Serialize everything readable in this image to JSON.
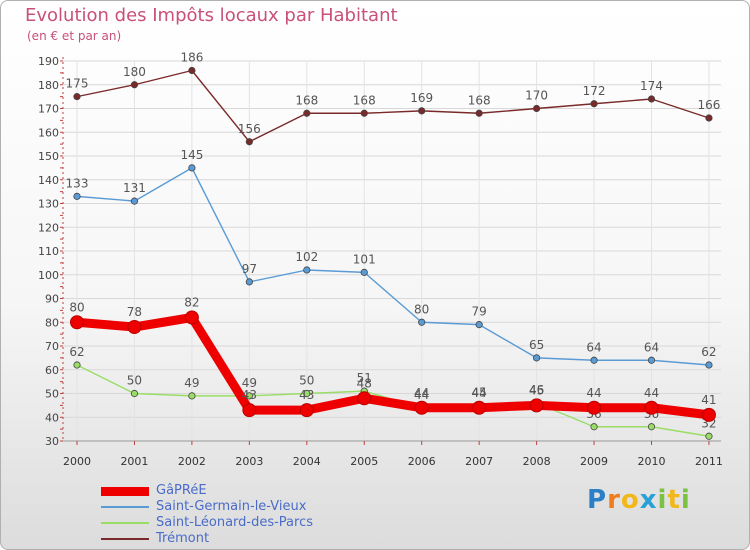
{
  "chart_data": {
    "type": "line",
    "title": "Evolution des Impôts locaux par Habitant",
    "subtitle": "(en € et par an)",
    "xlabel": "",
    "ylabel": "",
    "x": [
      "2000",
      "2001",
      "2002",
      "2003",
      "2004",
      "2005",
      "2006",
      "2007",
      "2008",
      "2009",
      "2010",
      "2011"
    ],
    "ylim": [
      30,
      190
    ],
    "yticks": [
      30,
      40,
      50,
      60,
      70,
      80,
      90,
      100,
      110,
      120,
      130,
      140,
      150,
      160,
      170,
      180,
      190
    ],
    "grid": true,
    "legend_position": "bottom-left",
    "series": [
      {
        "name": "Trémont",
        "color": "#7a2a2a",
        "values": [
          175,
          180,
          186,
          156,
          168,
          168,
          169,
          168,
          170,
          172,
          174,
          166
        ],
        "labels": [
          "175",
          "180",
          "186",
          "156",
          "168",
          "168",
          "169",
          "168",
          "170",
          "172",
          "174",
          "166"
        ]
      },
      {
        "name": "Saint-Germain-le-Vieux",
        "color": "#5b9bd5",
        "values": [
          133,
          131,
          145,
          97,
          102,
          101,
          80,
          79,
          65,
          64,
          64,
          62
        ],
        "labels": [
          "133",
          "131",
          "145",
          "97",
          "102",
          "101",
          "80",
          "79",
          "65",
          "64",
          "64",
          "62"
        ]
      },
      {
        "name": "Saint-Léonard-des-Parcs",
        "color": "#99dd66",
        "values": [
          62,
          50,
          49,
          49,
          50,
          51,
          44,
          45,
          46,
          36,
          36,
          32
        ],
        "labels": [
          "62",
          "50",
          "49",
          "49",
          "50",
          "51",
          "44",
          "45",
          "46",
          "36",
          "36",
          "32"
        ]
      },
      {
        "name": "GâPRéE",
        "color": "#ee0000",
        "values": [
          80,
          78,
          82,
          43,
          43,
          48,
          44,
          44,
          45,
          44,
          44,
          41
        ],
        "labels": [
          "80",
          "78",
          "82",
          "43",
          "43",
          "48",
          "44",
          "44",
          "45",
          "44",
          "44",
          "41"
        ]
      }
    ]
  },
  "brand": {
    "letters": [
      "P",
      "r",
      "o",
      "x",
      "i",
      "t",
      "i"
    ],
    "colors": [
      "#2a7fc8",
      "#ef7d1c",
      "#f2b71b",
      "#2aa0d8",
      "#7cc242",
      "#f2b71b",
      "#7cc242"
    ]
  }
}
